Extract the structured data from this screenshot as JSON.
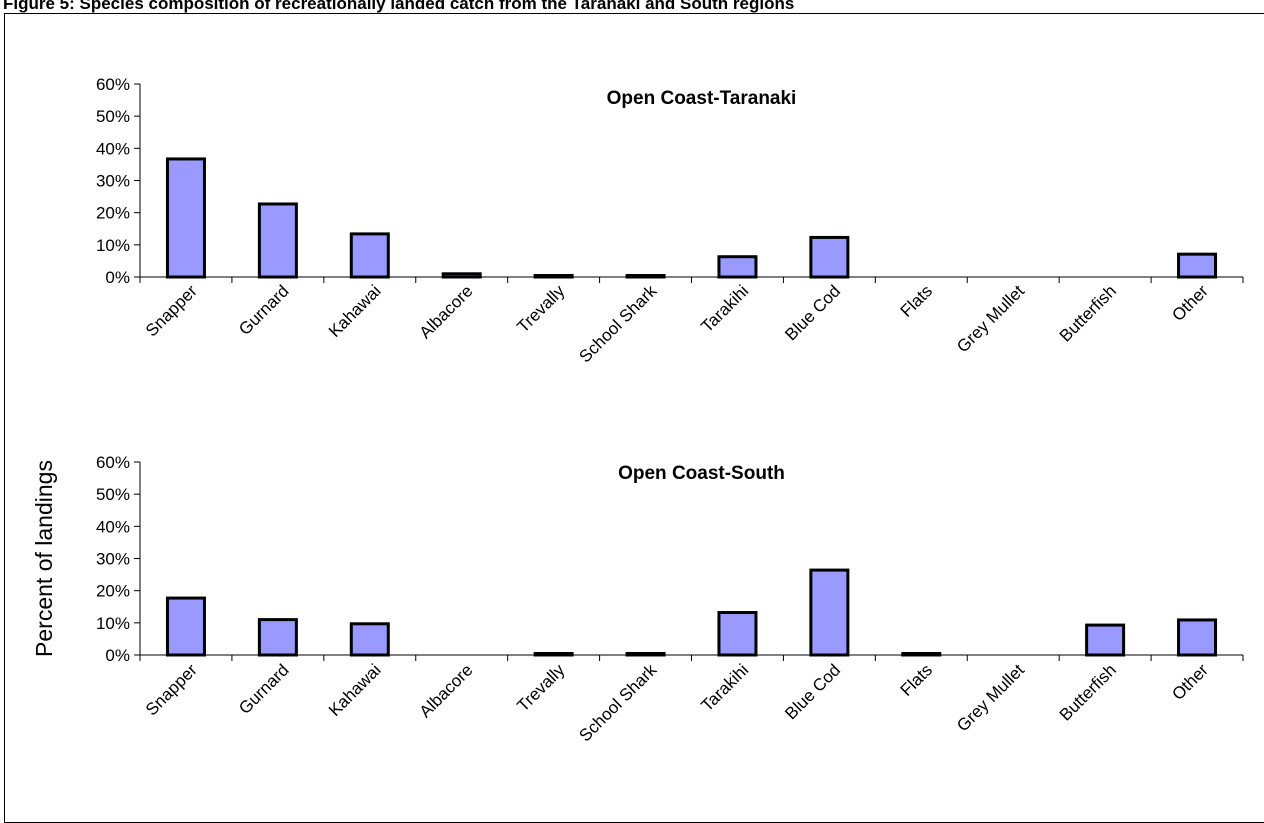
{
  "figure": {
    "caption": "Figure 5: Species composition of recreationally landed catch from the Taranaki and South regions"
  },
  "colors": {
    "bar_fill": "#9999ff",
    "bar_stroke": "#000000",
    "axis": "#000000"
  },
  "chart_data": [
    {
      "type": "bar",
      "title": "Open Coast-Taranaki",
      "xlabel": "",
      "ylabel": "",
      "ylim": [
        0,
        0.6
      ],
      "yticks": [
        "0%",
        "10%",
        "20%",
        "30%",
        "40%",
        "50%",
        "60%"
      ],
      "grid": false,
      "categories": [
        "Snapper",
        "Gurnard",
        "Kahawai",
        "Albacore",
        "Trevally",
        "School Shark",
        "Tarakihi",
        "Blue Cod",
        "Flats",
        "Grey Mullet",
        "Butterfish",
        "Other"
      ],
      "values": [
        0.367,
        0.227,
        0.134,
        0.01,
        0.002,
        0.002,
        0.063,
        0.123,
        0,
        0,
        0,
        0.071
      ]
    },
    {
      "type": "bar",
      "title": "Open Coast-South",
      "xlabel": "",
      "ylabel": "Percent of landings",
      "ylim": [
        0,
        0.6
      ],
      "yticks": [
        "0%",
        "10%",
        "20%",
        "30%",
        "40%",
        "50%",
        "60%"
      ],
      "grid": false,
      "categories": [
        "Snapper",
        "Gurnard",
        "Kahawai",
        "Albacore",
        "Trevally",
        "School Shark",
        "Tarakihi",
        "Blue Cod",
        "Flats",
        "Grey Mullet",
        "Butterfish",
        "Other"
      ],
      "values": [
        0.177,
        0.11,
        0.097,
        0,
        0.004,
        0.004,
        0.132,
        0.264,
        0.002,
        0,
        0.093,
        0.109
      ]
    }
  ]
}
